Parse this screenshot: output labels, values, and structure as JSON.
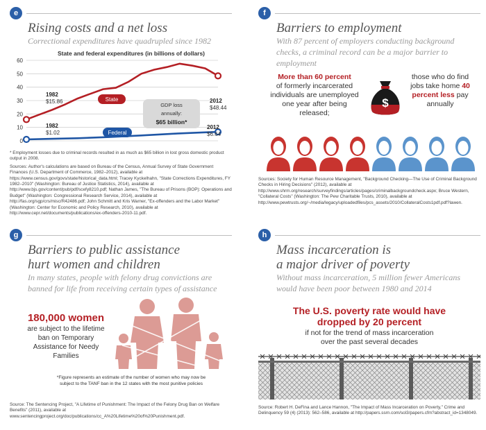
{
  "panels": {
    "e": {
      "badge": "e",
      "title": "Rising costs and a net loss",
      "subtitle": "Correctional expenditures have quadrupled since 1982",
      "gdp_box": [
        "GDP loss",
        "annually:",
        "$65 billion*"
      ],
      "footnote": "* Employment losses due to criminal records resulted in as much as $65 billion in lost gross domestic product output in 2008.",
      "sources": "Sources: Author's calculations are based on Bureau of the Census, Annual Survey of State Government Finances (U.S. Department of Commerce, 1982–2012), available at https://www.census.gov/govs/state/historical_data.html; Tracey Kyckelhahn, \"State Corrections Expenditures, FY 1982–2010\" (Washington: Bureau of Justice Statistics, 2014), available at http://www.bjs.gov/content/pub/pdf/scefy8210.pdf; Nathan James, \"The Bureau of Prisons (BOP): Operations and Budget\" (Washington: Congressional Research Service, 2014), available at http://fas.org/sgp/crs/misc/R42486.pdf; John Schmitt and Kris Warner, \"Ex-offenders and the Labor Market\" (Washington: Center for Economic and Policy Research, 2010), available at http://www.cepr.net/documents/publications/ex-offenders-2010-11.pdf."
    },
    "f": {
      "badge": "f",
      "title": "Barriers to employment",
      "subtitle": "With 87 percent of employers conducting background checks, a criminal record can be a major barrier to employment",
      "left_highlight": "More than 60 percent",
      "left_text": "of formerly incarcerated individuals are unemployed one year after being released;",
      "right_text_1": "those who do find jobs take home",
      "right_highlight": "40 percent less",
      "right_text_2": "pay annually",
      "bag_symbol": "$",
      "sources": "Sources: Society for Human Resource Management, \"Background Checking—The Use of Criminal Background Checks in Hiring Decisions\" (2012), available at http://www.shrm.org/research/surveyfindings/articles/pages/criminalbackgroundcheck.aspx; Bruce Western, \"Collateral Costs\" (Washington: The Pew Charitable Trusts, 2010), available at http://www.pewtrusts.org/~/media/legacy/uploadedfiles/pcs_assets/2010/CollateralCosts1pdf.pdf?lawen."
    },
    "g": {
      "badge": "g",
      "title_1": "Barriers to public assistance",
      "title_2": "hurt women and children",
      "subtitle": "In many states, people with felony drug convictions are banned for life from receiving certain types of assistance",
      "highlight": "180,000 women",
      "text": "are subject to the lifetime ban on Temporary Assistance for Needy Families",
      "note": "*Figure represents an estimate of the number of women who may now be subject to the TANF ban in the 12 states with the most punitive policies",
      "sources": "Source: The Sentencing Project, \"A Lifetime of Punishment: The Impact of the Felony Drug Ban on Welfare Benefits\" (2011), available at www.sentencingproject.org/doc/publications/cc_A%20Lifetime%20of%20Punishment.pdf."
    },
    "h": {
      "badge": "h",
      "title_1": "Mass incarceration is",
      "title_2": "a major driver of poverty",
      "subtitle": "Without mass incarceration, 5 million fewer Americans would have been poor between 1980 and 2014",
      "highlight_1": "The U.S. poverty rate would have",
      "highlight_2": "dropped by 20 percent",
      "text": "if not for the trend of mass incarceration over the past several decades",
      "sources": "Source: Robert H. DeFina and Lance Hannon, \"The Impact of Mass Incarceration on Poverty,\" Crime and Delinquency 59 (4) (2013): 562–586, available at http://papers.ssrn.com/sol3/papers.cfm?abstract_id=1348049."
    }
  },
  "colors": {
    "badge": "#2b5fa8",
    "state": "#b41f24",
    "federal": "#1f56a5",
    "men": "#c8342f",
    "women_fig": "#dc9b95",
    "people_blue": "#5b94cc"
  },
  "chart_data": {
    "type": "line",
    "title": "State and federal expenditures (in billions of dollars)",
    "ylim": [
      0,
      60
    ],
    "yticks": [
      0,
      10,
      20,
      30,
      40,
      50,
      60
    ],
    "x_range": [
      1982,
      2012
    ],
    "grid": true,
    "series": [
      {
        "name": "State",
        "x": [
          1982,
          1984,
          1986,
          1988,
          1990,
          1992,
          1994,
          1996,
          1998,
          2000,
          2002,
          2004,
          2006,
          2008,
          2010,
          2012
        ],
        "values": [
          15.86,
          19.5,
          23,
          27,
          31.5,
          35,
          38.5,
          39.5,
          44,
          50,
          53,
          55,
          57.5,
          56,
          54,
          48.44
        ]
      },
      {
        "name": "Federal",
        "x": [
          1982,
          1985,
          1990,
          1995,
          2000,
          2005,
          2010,
          2012
        ],
        "values": [
          1.02,
          1.4,
          1.9,
          2.8,
          4,
          5.3,
          6.3,
          6.64
        ]
      }
    ],
    "annotations": [
      {
        "year": "1982",
        "value": "$15.86"
      },
      {
        "year": "2012",
        "value": "$48.44"
      },
      {
        "year": "1982",
        "value": "$1.02"
      },
      {
        "year": "2012",
        "value": "$6.64"
      }
    ]
  }
}
